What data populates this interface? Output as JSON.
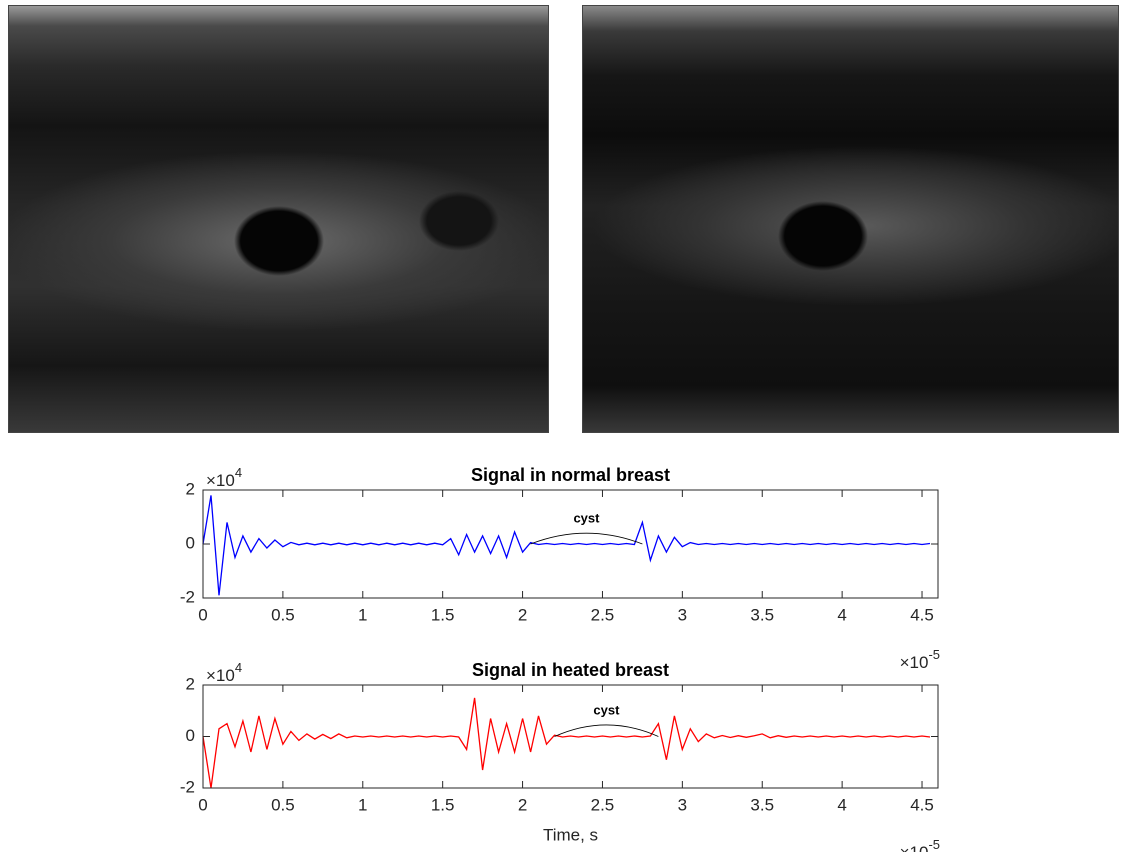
{
  "chart_data": [
    {
      "type": "line",
      "title": "Signal in normal breast",
      "x": [
        0,
        0.05,
        0.1,
        0.15,
        0.2,
        0.25,
        0.3,
        0.35,
        0.4,
        0.45,
        0.5,
        0.55,
        0.6,
        0.65,
        0.7,
        0.75,
        0.8,
        0.85,
        0.9,
        0.95,
        1,
        1.05,
        1.1,
        1.15,
        1.2,
        1.25,
        1.3,
        1.35,
        1.4,
        1.45,
        1.5,
        1.55,
        1.6,
        1.65,
        1.7,
        1.75,
        1.8,
        1.85,
        1.9,
        1.95,
        2,
        2.05,
        2.1,
        2.15,
        2.2,
        2.25,
        2.3,
        2.35,
        2.4,
        2.45,
        2.5,
        2.55,
        2.6,
        2.65,
        2.7,
        2.75,
        2.8,
        2.85,
        2.9,
        2.95,
        3,
        3.05,
        3.1,
        3.15,
        3.2,
        3.25,
        3.3,
        3.35,
        3.4,
        3.45,
        3.5,
        3.55,
        3.6,
        3.65,
        3.7,
        3.75,
        3.8,
        3.85,
        3.9,
        3.95,
        4,
        4.05,
        4.1,
        4.15,
        4.2,
        4.25,
        4.3,
        4.35,
        4.4,
        4.45,
        4.5,
        4.55
      ],
      "series": [
        {
          "color": "#0000ff",
          "values": [
            0,
            1.8,
            -1.9,
            0.8,
            -0.5,
            0.3,
            -0.3,
            0.2,
            -0.15,
            0.15,
            -0.1,
            0.06,
            -0.03,
            0.03,
            -0.03,
            0.03,
            -0.03,
            0.03,
            -0.03,
            0.03,
            -0.03,
            0.03,
            -0.03,
            0.03,
            -0.03,
            0.03,
            -0.03,
            0.03,
            -0.03,
            0.03,
            -0.03,
            0.2,
            -0.4,
            0.35,
            -0.3,
            0.3,
            -0.35,
            0.3,
            -0.5,
            0.45,
            -0.3,
            0.05,
            -0.02,
            0.02,
            -0.02,
            0.02,
            -0.02,
            0.02,
            -0.02,
            0.02,
            -0.02,
            0.02,
            -0.02,
            0.02,
            -0.02,
            0.8,
            -0.6,
            0.3,
            -0.3,
            0.25,
            -0.1,
            0.05,
            -0.02,
            0.02,
            -0.02,
            0.02,
            -0.02,
            0.02,
            -0.02,
            0.02,
            -0.02,
            0.02,
            -0.02,
            0.02,
            -0.02,
            0.02,
            -0.02,
            0.02,
            -0.02,
            0.02,
            -0.02,
            0.02,
            -0.02,
            0.02,
            -0.02,
            0.02,
            -0.02,
            0.02,
            -0.02,
            0.02,
            -0.02,
            0.02
          ]
        }
      ],
      "xlim": [
        0,
        4.6
      ],
      "xticks": [
        0,
        0.5,
        1,
        1.5,
        2,
        2.5,
        3,
        3.5,
        4,
        4.5
      ],
      "ylim": [
        -2,
        2
      ],
      "yticks": [
        -2,
        0,
        2
      ],
      "y_multiplier": {
        "base": "×10",
        "exponent": "4"
      },
      "x_multiplier": {
        "base": "×10",
        "exponent": "-5"
      },
      "annotations": [
        {
          "text": "cyst",
          "x": [
            2.05,
            2.75
          ],
          "y": 0.4
        }
      ]
    },
    {
      "type": "line",
      "title": "Signal in heated breast",
      "xlabel": "Time, s",
      "x": [
        0,
        0.05,
        0.1,
        0.15,
        0.2,
        0.25,
        0.3,
        0.35,
        0.4,
        0.45,
        0.5,
        0.55,
        0.6,
        0.65,
        0.7,
        0.75,
        0.8,
        0.85,
        0.9,
        0.95,
        1,
        1.05,
        1.1,
        1.15,
        1.2,
        1.25,
        1.3,
        1.35,
        1.4,
        1.45,
        1.5,
        1.55,
        1.6,
        1.65,
        1.7,
        1.75,
        1.8,
        1.85,
        1.9,
        1.95,
        2,
        2.05,
        2.1,
        2.15,
        2.2,
        2.25,
        2.3,
        2.35,
        2.4,
        2.45,
        2.5,
        2.55,
        2.6,
        2.65,
        2.7,
        2.75,
        2.8,
        2.85,
        2.9,
        2.95,
        3,
        3.05,
        3.1,
        3.15,
        3.2,
        3.25,
        3.3,
        3.35,
        3.4,
        3.45,
        3.5,
        3.55,
        3.6,
        3.65,
        3.7,
        3.75,
        3.8,
        3.85,
        3.9,
        3.95,
        4,
        4.05,
        4.1,
        4.15,
        4.2,
        4.25,
        4.3,
        4.35,
        4.4,
        4.45,
        4.5,
        4.55
      ],
      "series": [
        {
          "color": "#ff0000",
          "values": [
            0,
            -2,
            0.3,
            0.5,
            -0.4,
            0.6,
            -0.6,
            0.8,
            -0.5,
            0.7,
            -0.3,
            0.2,
            -0.15,
            0.1,
            -0.1,
            0.08,
            -0.08,
            0.1,
            -0.05,
            0.02,
            -0.02,
            0.02,
            -0.02,
            0.02,
            -0.02,
            0.02,
            -0.02,
            0.02,
            -0.02,
            0.02,
            -0.02,
            0.02,
            -0.02,
            -0.5,
            1.5,
            -1.3,
            0.7,
            -0.6,
            0.5,
            -0.6,
            0.7,
            -0.6,
            0.8,
            -0.3,
            0.05,
            -0.02,
            0.02,
            -0.02,
            0.02,
            -0.02,
            0.02,
            -0.02,
            0.02,
            -0.02,
            0.02,
            -0.02,
            0.02,
            0.5,
            -0.9,
            0.8,
            -0.5,
            0.3,
            -0.2,
            0.1,
            -0.05,
            0.04,
            -0.04,
            0.03,
            -0.03,
            0.03,
            0.1,
            -0.05,
            0.03,
            -0.03,
            0.02,
            -0.02,
            0.02,
            -0.02,
            0.02,
            -0.02,
            0.02,
            -0.02,
            0.02,
            -0.02,
            0.02,
            -0.02,
            0.02,
            -0.02,
            0.02,
            -0.02,
            0.02,
            -0.02
          ]
        }
      ],
      "xlim": [
        0,
        4.6
      ],
      "xticks": [
        0,
        0.5,
        1,
        1.5,
        2,
        2.5,
        3,
        3.5,
        4,
        4.5
      ],
      "ylim": [
        -2,
        2
      ],
      "yticks": [
        -2,
        0,
        2
      ],
      "y_multiplier": {
        "base": "×10",
        "exponent": "4"
      },
      "x_multiplier": {
        "base": "×10",
        "exponent": "-5"
      },
      "annotations": [
        {
          "text": "cyst",
          "x": [
            2.2,
            2.85
          ],
          "y": 0.45
        }
      ]
    }
  ]
}
